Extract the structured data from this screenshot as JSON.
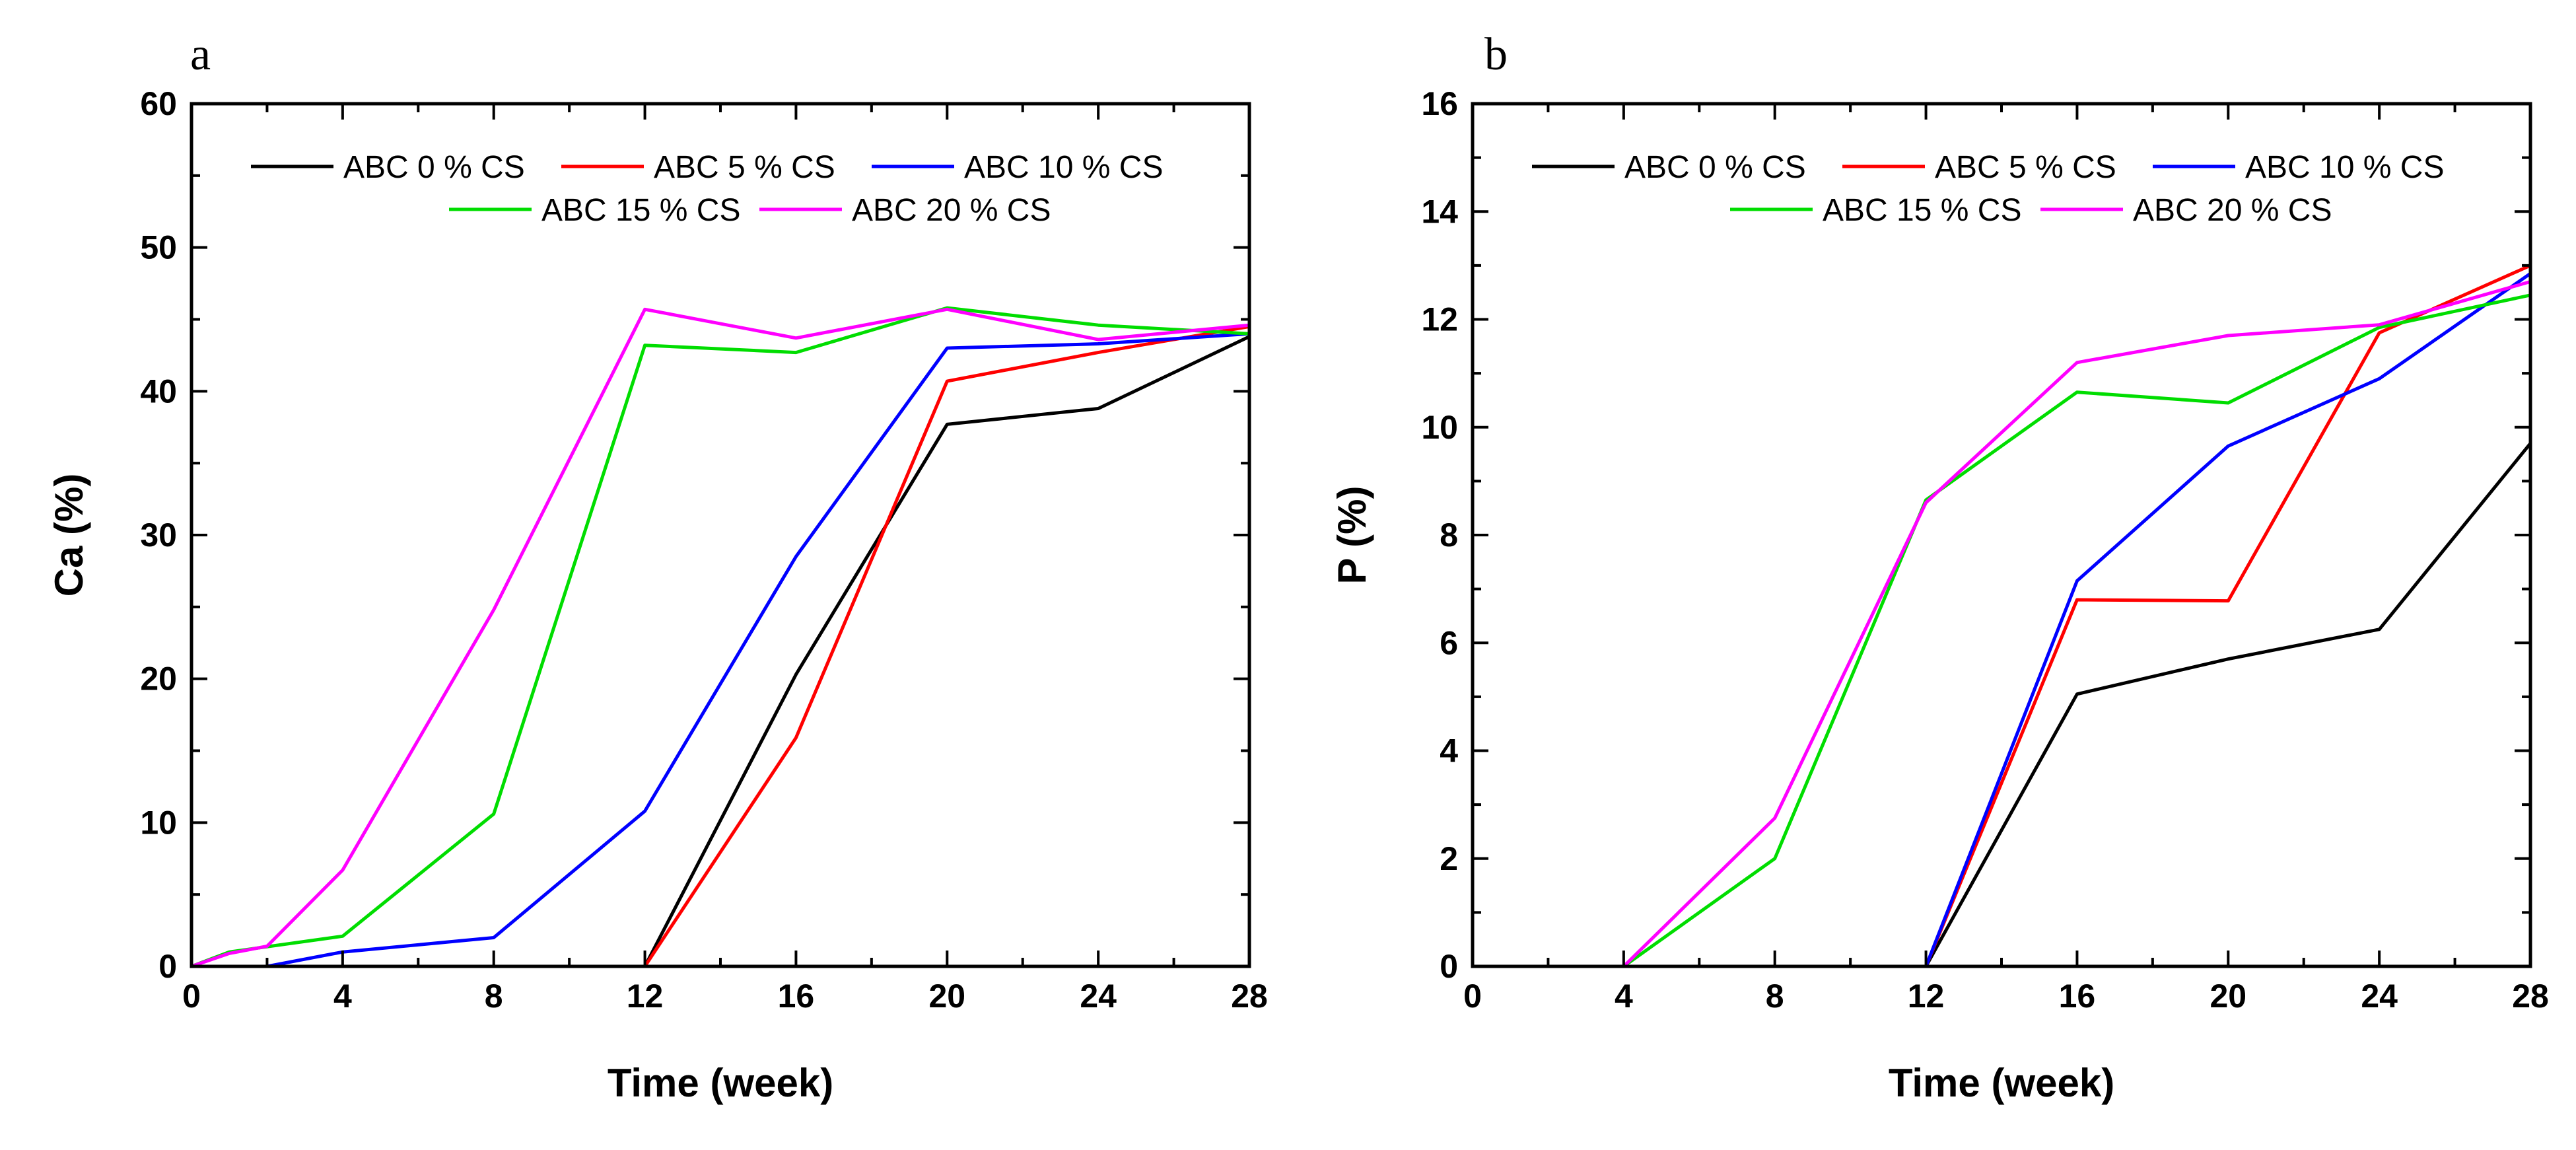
{
  "chart_data": [
    {
      "type": "line",
      "panel_label": "a",
      "xlabel": "Time (week)",
      "ylabel": "Ca (%)",
      "xlim": [
        0,
        28
      ],
      "ylim": [
        0,
        60
      ],
      "xticks": [
        0,
        4,
        8,
        12,
        16,
        20,
        24,
        28
      ],
      "yticks": [
        0,
        10,
        20,
        30,
        40,
        50,
        60
      ],
      "grid": false,
      "legend_position": "top",
      "series": [
        {
          "name": "ABC 0 % CS",
          "color": "#000000",
          "x": [
            0,
            4,
            8,
            12,
            16,
            20,
            24,
            28
          ],
          "y": [
            0,
            0,
            0,
            0,
            20.3,
            37.7,
            38.8,
            43.8
          ]
        },
        {
          "name": "ABC 5 % CS",
          "color": "#ff0000",
          "x": [
            0,
            4,
            8,
            12,
            16,
            20,
            24,
            28
          ],
          "y": [
            0,
            0,
            0,
            0,
            15.9,
            40.7,
            42.7,
            44.5
          ]
        },
        {
          "name": "ABC 10 % CS",
          "color": "#0000ff",
          "x": [
            0,
            2,
            4,
            8,
            12,
            16,
            20,
            24,
            28
          ],
          "y": [
            0,
            0,
            1.0,
            2.0,
            10.8,
            28.5,
            43.0,
            43.3,
            44.0
          ]
        },
        {
          "name": "ABC 15 % CS",
          "color": "#00dd00",
          "x": [
            0,
            1,
            4,
            8,
            12,
            16,
            20,
            24,
            28
          ],
          "y": [
            0,
            1.0,
            2.1,
            10.6,
            43.2,
            42.7,
            45.8,
            44.6,
            44.0
          ]
        },
        {
          "name": "ABC 20 % CS",
          "color": "#ff00ff",
          "x": [
            0,
            1,
            2,
            4,
            8,
            12,
            16,
            20,
            24,
            28
          ],
          "y": [
            0,
            0.9,
            1.4,
            6.7,
            24.8,
            45.7,
            43.7,
            45.7,
            43.6,
            44.6
          ]
        }
      ]
    },
    {
      "type": "line",
      "panel_label": "b",
      "xlabel": "Time (week)",
      "ylabel": "P (%)",
      "xlim": [
        0,
        28
      ],
      "ylim": [
        0,
        16
      ],
      "xticks": [
        0,
        4,
        8,
        12,
        16,
        20,
        24,
        28
      ],
      "yticks": [
        0,
        2,
        4,
        6,
        8,
        10,
        12,
        14,
        16
      ],
      "grid": false,
      "legend_position": "top",
      "series": [
        {
          "name": "ABC 0 % CS",
          "color": "#000000",
          "x": [
            0,
            4,
            8,
            12,
            16,
            20,
            24,
            28
          ],
          "y": [
            0,
            0,
            0,
            0,
            5.05,
            5.7,
            6.25,
            9.7
          ]
        },
        {
          "name": "ABC 5 % CS",
          "color": "#ff0000",
          "x": [
            0,
            4,
            8,
            12,
            16,
            20,
            24,
            28
          ],
          "y": [
            0,
            0,
            0,
            0,
            6.8,
            6.78,
            11.75,
            13.0
          ]
        },
        {
          "name": "ABC 10 % CS",
          "color": "#0000ff",
          "x": [
            0,
            4,
            8,
            12,
            16,
            20,
            24,
            28
          ],
          "y": [
            0,
            0,
            0,
            0,
            7.15,
            9.65,
            10.9,
            12.85
          ]
        },
        {
          "name": "ABC 15 % CS",
          "color": "#00dd00",
          "x": [
            0,
            4,
            8,
            12,
            16,
            20,
            24,
            28
          ],
          "y": [
            0,
            0,
            2.0,
            8.65,
            10.65,
            10.45,
            11.85,
            12.45
          ]
        },
        {
          "name": "ABC 20 % CS",
          "color": "#ff00ff",
          "x": [
            0,
            4,
            8,
            12,
            16,
            20,
            24,
            28
          ],
          "y": [
            0,
            0,
            2.75,
            8.6,
            11.2,
            11.7,
            11.9,
            12.7
          ]
        }
      ]
    }
  ]
}
